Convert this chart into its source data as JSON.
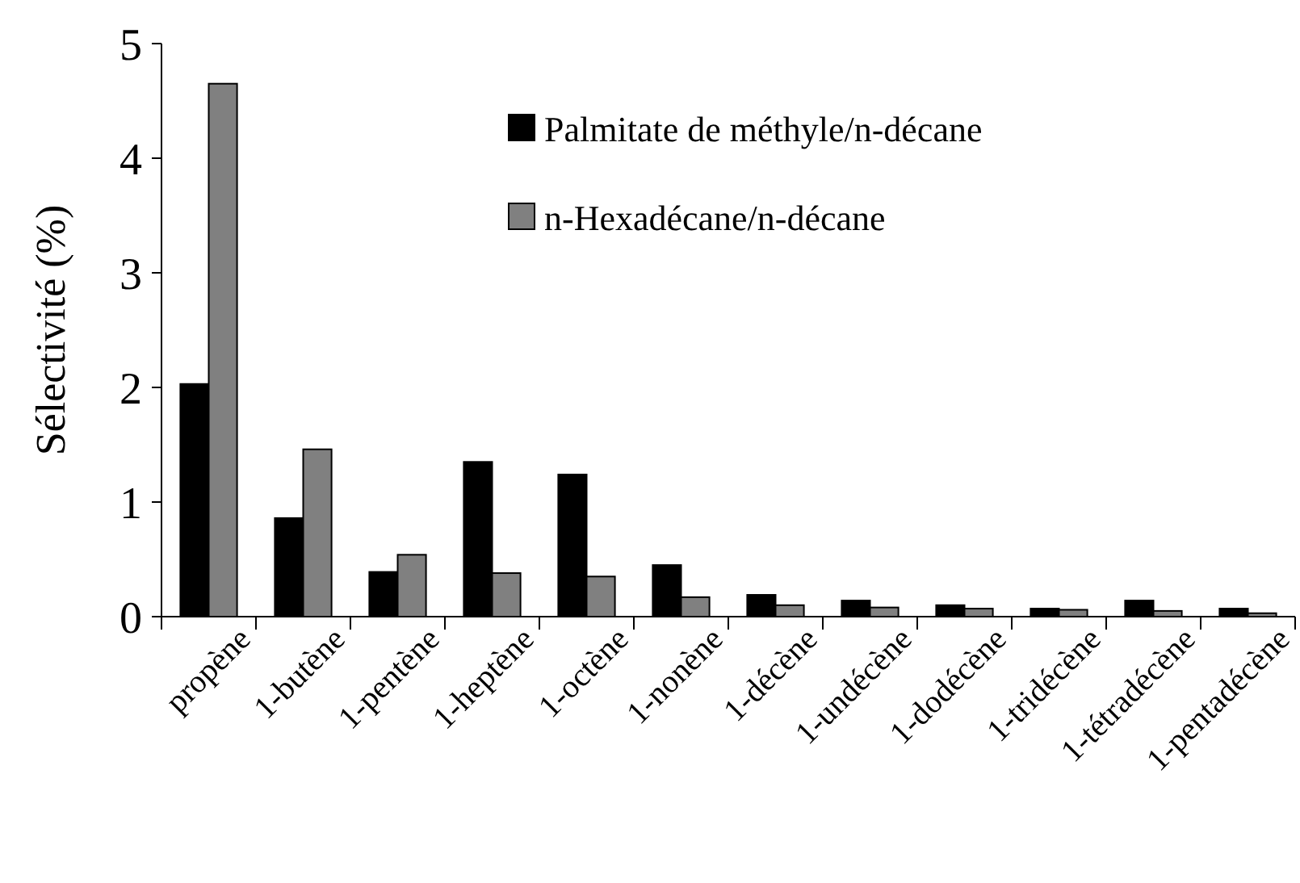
{
  "chart_data": {
    "type": "bar",
    "ylabel": "Sélectivité (%)",
    "categories": [
      "propène",
      "1-butène",
      "1-pentène",
      "1-heptène",
      "1-octène",
      "1-nonène",
      "1-décène",
      "1-undécène",
      "1-dodécène",
      "1-tridécène",
      "1-tétradécène",
      "1-pentadécène"
    ],
    "series": [
      {
        "name": "Palmitate de méthyle/n-décane",
        "color": "#000000",
        "values": [
          2.03,
          0.86,
          0.39,
          1.35,
          1.24,
          0.45,
          0.19,
          0.14,
          0.1,
          0.07,
          0.14,
          0.07
        ]
      },
      {
        "name": "n-Hexadécane/n-décane",
        "color": "#808080",
        "values": [
          4.65,
          1.46,
          0.54,
          0.38,
          0.35,
          0.17,
          0.1,
          0.08,
          0.07,
          0.06,
          0.05,
          0.03
        ]
      }
    ],
    "ylim": [
      0,
      5
    ],
    "yticks": [
      0,
      1,
      2,
      3,
      4,
      5
    ],
    "grid": false,
    "legend": "top right"
  }
}
